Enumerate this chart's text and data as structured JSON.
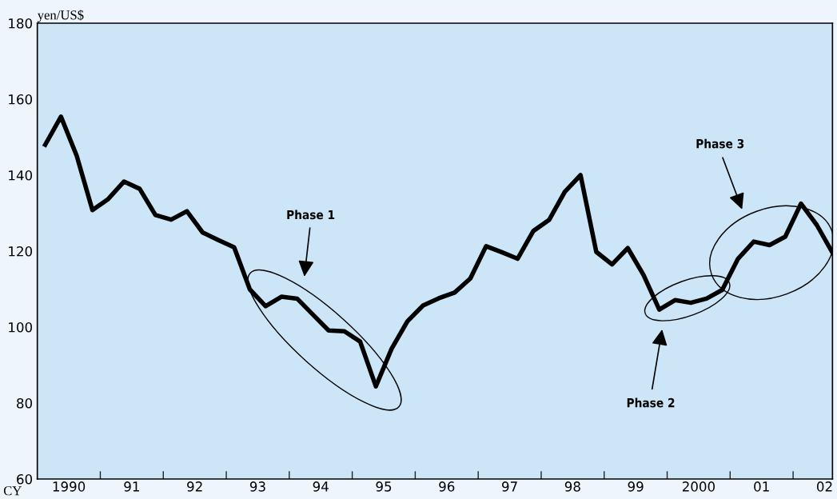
{
  "chart_data": {
    "type": "line",
    "ylabel": "yen/US$",
    "x": [
      1989.625,
      1989.875,
      1990.125,
      1990.375,
      1990.625,
      1990.875,
      1991.125,
      1991.375,
      1991.625,
      1991.875,
      1992.125,
      1992.375,
      1992.625,
      1992.875,
      1993.125,
      1993.375,
      1993.625,
      1993.875,
      1994.125,
      1994.375,
      1994.625,
      1994.875,
      1995.125,
      1995.375,
      1995.625,
      1995.875,
      1996.125,
      1996.375,
      1996.625,
      1996.875,
      1997.125,
      1997.375,
      1997.625,
      1997.875,
      1998.125,
      1998.375,
      1998.625,
      1998.875,
      1999.125,
      1999.375,
      1999.625,
      1999.875,
      2000.125,
      2000.375,
      2000.625,
      2000.875,
      2001.125,
      2001.375,
      2001.625,
      2001.875,
      2002.125
    ],
    "series": [
      {
        "color": "#000000",
        "values": [
          148.0,
          155.4,
          145.1,
          130.8,
          133.7,
          138.3,
          136.4,
          129.5,
          128.3,
          130.5,
          124.9,
          122.9,
          121.0,
          109.9,
          105.5,
          108.0,
          107.5,
          103.3,
          99.1,
          98.9,
          96.2,
          84.4,
          94.3,
          101.5,
          105.7,
          107.6,
          109.1,
          112.8,
          121.3,
          119.7,
          118.0,
          125.3,
          128.2,
          135.6,
          140.0,
          119.8,
          116.5,
          120.8,
          113.7,
          104.6,
          107.1,
          106.4,
          107.5,
          109.8,
          118.0,
          122.5,
          121.6,
          123.8,
          132.5,
          126.9,
          119.6
        ]
      }
    ],
    "xlim": [
      1989.5,
      2002.125
    ],
    "xticks": [
      {
        "value": 1990,
        "label": "1990"
      },
      {
        "value": 1990.5,
        "label": null
      },
      {
        "value": 1991,
        "label": "91"
      },
      {
        "value": 1991.5,
        "label": null
      },
      {
        "value": 1992,
        "label": "92"
      },
      {
        "value": 1992.5,
        "label": null
      },
      {
        "value": 1993,
        "label": "93"
      },
      {
        "value": 1993.5,
        "label": null
      },
      {
        "value": 1994,
        "label": "94"
      },
      {
        "value": 1994.5,
        "label": null
      },
      {
        "value": 1995,
        "label": "95"
      },
      {
        "value": 1995.5,
        "label": null
      },
      {
        "value": 1996,
        "label": "96"
      },
      {
        "value": 1996.5,
        "label": null
      },
      {
        "value": 1997,
        "label": "97"
      },
      {
        "value": 1997.5,
        "label": null
      },
      {
        "value": 1998,
        "label": "98"
      },
      {
        "value": 1998.5,
        "label": null
      },
      {
        "value": 1999,
        "label": "99"
      },
      {
        "value": 1999.5,
        "label": null
      },
      {
        "value": 2000,
        "label": "2000"
      },
      {
        "value": 2000.5,
        "label": null
      },
      {
        "value": 2001,
        "label": "01"
      },
      {
        "value": 2001.5,
        "label": null
      },
      {
        "value": 2002,
        "label": "02"
      }
    ],
    "ylim": [
      60,
      180
    ],
    "yticks": [
      60,
      80,
      100,
      120,
      140,
      160,
      180
    ],
    "grid": false,
    "marker": "none",
    "line_style": "solid",
    "annotations": [
      "CY",
      "Phase 1",
      "Phase 2",
      "Phase 3"
    ]
  }
}
